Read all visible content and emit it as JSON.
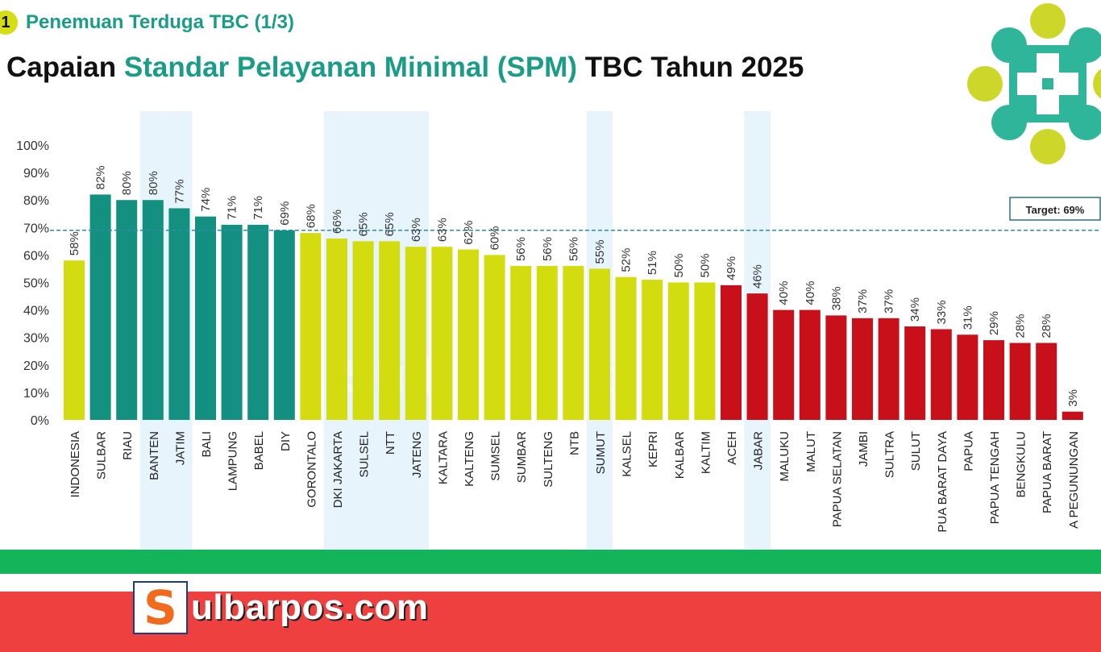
{
  "header": {
    "section_number": "1",
    "section_label": "Penemuan Terduga TBC (1/3)",
    "title_prefix": "Capaian ",
    "title_highlight": "Standar Pelayanan Minimal (SPM)",
    "title_suffix": " TBC Tahun 2025"
  },
  "watermark": "Sulbarpos.com",
  "brand": {
    "icon_letter": "S",
    "name_part1": "ulbarpos",
    "name_dot": ".",
    "name_part2": "com"
  },
  "colors": {
    "teal": "#13907f",
    "yellow": "#d3dc0e",
    "red": "#c8101a",
    "highlight_band": "#e7f4fc",
    "target_line": "#2b8ea3",
    "accent_green": "#14b45a",
    "accent_red": "#ef4040"
  },
  "chart_data": {
    "type": "bar",
    "title": "Capaian Standar Pelayanan Minimal (SPM) TBC Tahun 2025",
    "ylim": [
      0,
      100
    ],
    "yticks": [
      "0%",
      "10%",
      "20%",
      "30%",
      "40%",
      "50%",
      "60%",
      "70%",
      "80%",
      "90%",
      "100%"
    ],
    "target": {
      "value": 69,
      "label": "Target: 69%"
    },
    "categories": [
      "INDONESIA",
      "SULBAR",
      "RIAU",
      "BANTEN",
      "JATIM",
      "BALI",
      "LAMPUNG",
      "BABEL",
      "DIY",
      "GORONTALO",
      "DKI JAKARTA",
      "SULSEL",
      "NTT",
      "JATENG",
      "KALTARA",
      "KALTENG",
      "SUMSEL",
      "SUMBAR",
      "SULTENG",
      "NTB",
      "SUMUT",
      "KALSEL",
      "KEPRI",
      "KALBAR",
      "KALTIM",
      "ACEH",
      "JABAR",
      "MALUKU",
      "MALUT",
      "PAPUA SELATAN",
      "JAMBI",
      "SULTRA",
      "SULUT",
      "PUA BARAT DAYA",
      "PAPUA",
      "PAPUA TENGAH",
      "BENGKULU",
      "PAPUA BARAT",
      "A PEGUNUNGAN"
    ],
    "values": [
      58,
      82,
      80,
      80,
      77,
      74,
      71,
      71,
      69,
      68,
      66,
      65,
      65,
      63,
      63,
      62,
      60,
      56,
      56,
      56,
      55,
      52,
      51,
      50,
      50,
      49,
      46,
      40,
      40,
      38,
      37,
      37,
      34,
      33,
      31,
      29,
      28,
      28,
      3
    ],
    "value_labels": [
      "58%",
      "82%",
      "80%",
      "80%",
      "77%",
      "74%",
      "71%",
      "71%",
      "69%",
      "68%",
      "66%",
      "65%",
      "65%",
      "63%",
      "63%",
      "62%",
      "60%",
      "56%",
      "56%",
      "56%",
      "55%",
      "52%",
      "51%",
      "50%",
      "50%",
      "49%",
      "46%",
      "40%",
      "40%",
      "38%",
      "37%",
      "37%",
      "34%",
      "33%",
      "31%",
      "29%",
      "28%",
      "28%",
      "3%"
    ],
    "bar_colors": [
      "yellow",
      "teal",
      "teal",
      "teal",
      "teal",
      "teal",
      "teal",
      "teal",
      "teal",
      "yellow",
      "yellow",
      "yellow",
      "yellow",
      "yellow",
      "yellow",
      "yellow",
      "yellow",
      "yellow",
      "yellow",
      "yellow",
      "yellow",
      "yellow",
      "yellow",
      "yellow",
      "yellow",
      "red",
      "red",
      "red",
      "red",
      "red",
      "red",
      "red",
      "red",
      "red",
      "red",
      "red",
      "red",
      "red",
      "red"
    ],
    "highlighted_categories": [
      "BANTEN",
      "JATIM",
      "DKI JAKARTA",
      "SULSEL",
      "NTT",
      "JATENG",
      "SUMUT",
      "JABAR"
    ],
    "grid": false,
    "legend": "none"
  }
}
